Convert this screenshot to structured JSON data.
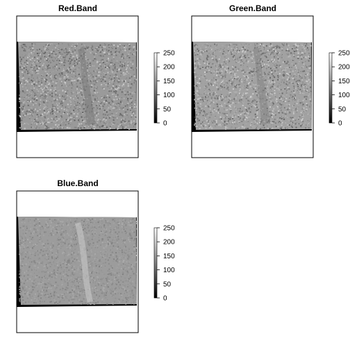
{
  "chart_data": [
    {
      "type": "heatmap",
      "title": "Red.Band",
      "value_range": [
        0,
        255
      ],
      "legend_ticks": [
        0,
        50,
        100,
        150,
        200,
        250
      ],
      "legend_tick_labels": [
        "0",
        "50",
        "100",
        "150",
        "200",
        "250"
      ],
      "legend_position": "right",
      "colormap": [
        "#000000",
        "#ffffff"
      ],
      "mean_value": 150
    },
    {
      "type": "heatmap",
      "title": "Green.Band",
      "value_range": [
        0,
        255
      ],
      "legend_ticks": [
        0,
        50,
        100,
        150,
        200,
        250
      ],
      "legend_tick_labels": [
        "0",
        "50",
        "100",
        "150",
        "200",
        "250"
      ],
      "legend_position": "right",
      "colormap": [
        "#000000",
        "#ffffff"
      ],
      "mean_value": 155
    },
    {
      "type": "heatmap",
      "title": "Blue.Band",
      "value_range": [
        0,
        255
      ],
      "legend_ticks": [
        0,
        50,
        100,
        150,
        200,
        250
      ],
      "legend_tick_labels": [
        "0",
        "50",
        "100",
        "150",
        "200",
        "250"
      ],
      "legend_position": "right",
      "colormap": [
        "#000000",
        "#ffffff"
      ],
      "mean_value": 150
    }
  ]
}
